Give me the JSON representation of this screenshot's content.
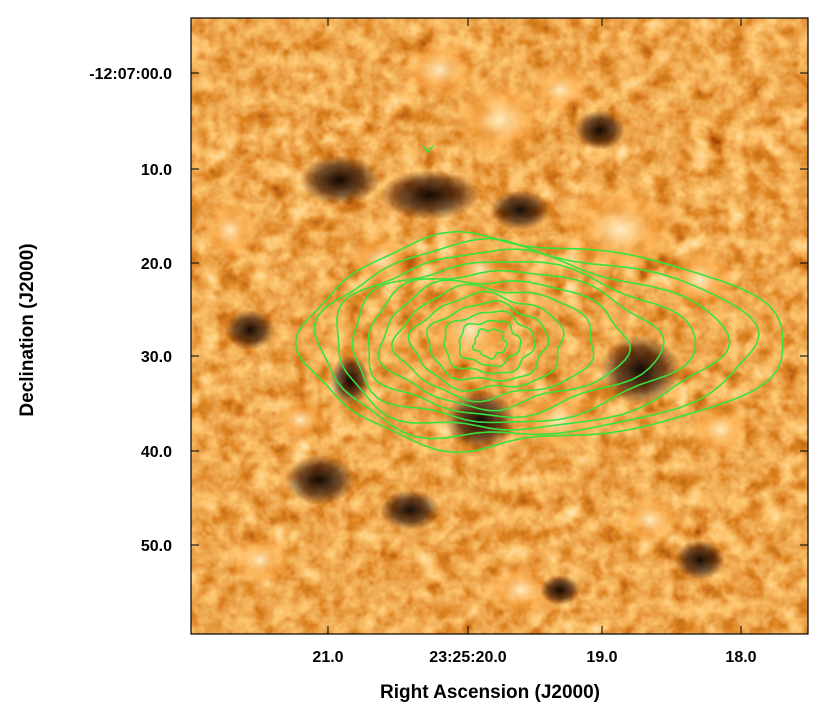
{
  "figure": {
    "xlabel": "Right Ascension (J2000)",
    "ylabel": "Declination (J2000)",
    "x_tick_labels": [
      "21.0",
      "23:25:20.0",
      "19.0",
      "18.0"
    ],
    "y_tick_labels": [
      "-12:07:00.0",
      "10.0",
      "20.0",
      "30.0",
      "40.0",
      "50.0"
    ],
    "colormap": "orange-heat",
    "contour_color": "#39e13c",
    "frame_color": "#000000"
  }
}
